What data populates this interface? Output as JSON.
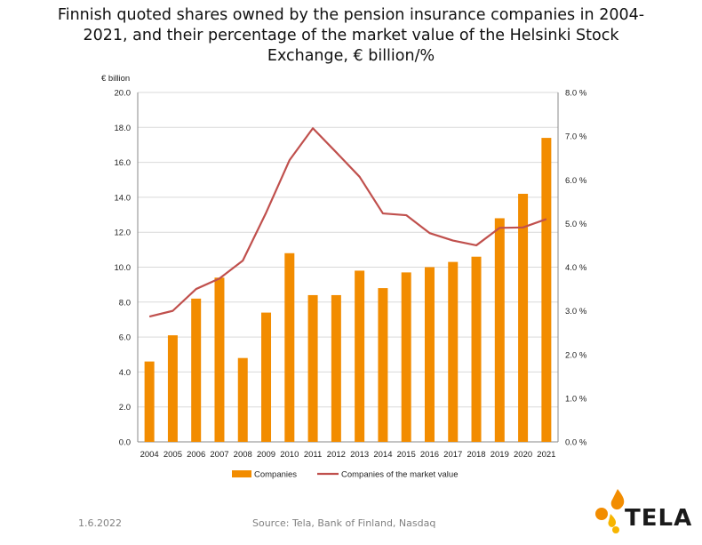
{
  "title_lines": [
    "Finnish quoted shares owned by the pension insurance companies in 2004-",
    "2021, and their percentage of the market value of the Helsinki Stock",
    "Exchange, € billion/%"
  ],
  "footer": {
    "date": "1.6.2022",
    "source": "Source: Tela, Bank of Finland, Nasdaq"
  },
  "logo": {
    "text": "TELA"
  },
  "colors": {
    "bar": "#F28C00",
    "line": "#C0504D",
    "axis": "#888888",
    "grid": "#d9d9d9"
  },
  "chart_data": {
    "type": "bar",
    "title": "Finnish quoted shares owned by the pension insurance companies in 2004-2021, and their percentage of the market value of the Helsinki Stock Exchange, € billion/%",
    "ylabel": "€ billion",
    "categories": [
      "2004",
      "2005",
      "2006",
      "2007",
      "2008",
      "2009",
      "2010",
      "2011",
      "2012",
      "2013",
      "2014",
      "2015",
      "2016",
      "2017",
      "2018",
      "2019",
      "2020",
      "2021"
    ],
    "y_ticks": [
      "0.0",
      "2.0",
      "4.0",
      "6.0",
      "8.0",
      "10.0",
      "12.0",
      "14.0",
      "16.0",
      "18.0",
      "20.0"
    ],
    "y2_ticks": [
      "0.0 %",
      "1.0 %",
      "2.0 %",
      "3.0 %",
      "4.0 %",
      "5.0 %",
      "6.0 %",
      "7.0 %",
      "8.0 %"
    ],
    "ylim": [
      0,
      20
    ],
    "y2lim": [
      0,
      8
    ],
    "grid": true,
    "legend_position": "bottom",
    "series": [
      {
        "name": "Companies",
        "type": "bar",
        "axis": "left",
        "values": [
          4.6,
          6.1,
          8.2,
          9.4,
          4.8,
          7.4,
          10.8,
          8.4,
          8.4,
          9.8,
          8.8,
          9.7,
          10.0,
          10.3,
          10.6,
          12.8,
          14.2,
          17.4
        ]
      },
      {
        "name": "Companies of the market value",
        "type": "line",
        "axis": "right",
        "values": [
          2.87,
          3.0,
          3.5,
          3.74,
          4.15,
          5.25,
          6.45,
          7.18,
          6.63,
          6.07,
          5.23,
          5.19,
          4.78,
          4.61,
          4.5,
          4.9,
          4.91,
          5.1
        ]
      }
    ]
  }
}
